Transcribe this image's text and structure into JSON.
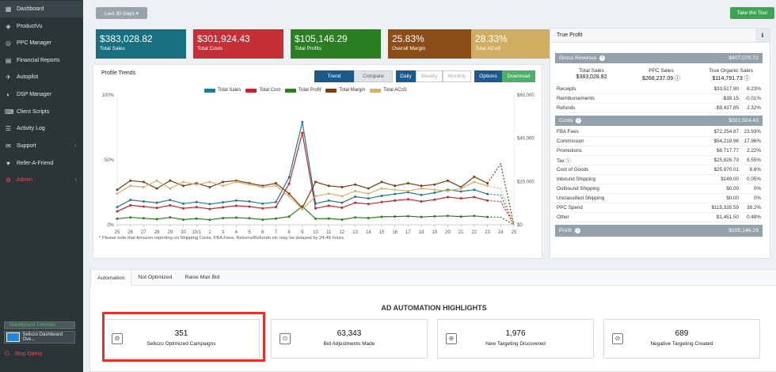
{
  "sidebar": {
    "items": [
      {
        "label": "Dashboard",
        "icon": "dashboard-icon",
        "active": true
      },
      {
        "label": "ProductVu",
        "icon": "product-icon"
      },
      {
        "label": "PPC Manager",
        "icon": "ppc-icon"
      },
      {
        "label": "Financial Reports",
        "icon": "report-icon"
      },
      {
        "label": "Autopilot",
        "icon": "autopilot-icon"
      },
      {
        "label": "DSP Manager",
        "icon": "dsp-icon"
      },
      {
        "label": "Client Scripts",
        "icon": "script-icon"
      },
      {
        "label": "Activity Log",
        "icon": "log-icon"
      },
      {
        "label": "Support",
        "icon": "support-icon",
        "arrow": "‹"
      },
      {
        "label": "Refer-A-Friend",
        "icon": "refer-icon"
      },
      {
        "label": "Admin",
        "icon": "admin-icon",
        "arrow": "‹"
      }
    ],
    "tutorials_label": "Dashboard Tutorials",
    "tutorial_item": "Sellozo Dashboard Ove...",
    "stop_demo": "Stop Demo"
  },
  "toolbar": {
    "date_range": "Last 30 Days ▾",
    "tour": "Take the Tour"
  },
  "kpis": [
    {
      "value": "$383,028.82",
      "label": "Total Sales",
      "color": "#17707f"
    },
    {
      "value": "$301,924.43",
      "label": "Total Costs",
      "color": "#c62f35"
    },
    {
      "value": "$105,146.29",
      "label": "Total Profits",
      "color": "#2a7f20"
    },
    {
      "value": "25.83%",
      "label": "Overall Margin",
      "color": "#8b4c16"
    },
    {
      "value": "28.33%",
      "label": "Total ACoS",
      "color": "#d0ae61"
    }
  ],
  "trend": {
    "title": "Profile Trends",
    "buttons": {
      "trend": "Trend",
      "compare": "Compare",
      "daily": "Daily",
      "weekly": "Weekly",
      "monthly": "Monthly",
      "options": "Options",
      "download": "Download"
    },
    "note": "* Please note that Amazon reporting on Shipping Costs, FBA Fees, Returns/Refunds etc may be delayed by 24-48 hours."
  },
  "chart_data": {
    "type": "line",
    "categories": [
      "25",
      "26",
      "27",
      "28",
      "29",
      "30",
      "10/1",
      "2",
      "3",
      "4",
      "5",
      "6",
      "7",
      "8",
      "9",
      "10",
      "11",
      "12",
      "13",
      "14",
      "15",
      "16",
      "17",
      "18",
      "19",
      "20",
      "21",
      "22",
      "23",
      "24",
      "25"
    ],
    "yleft_ticks": [
      "100%",
      "50%",
      "0%"
    ],
    "yright_ticks": [
      "$60,000",
      "$40,000",
      "$20,000",
      "$0"
    ],
    "ylim_left": [
      0,
      100
    ],
    "ylim_right": [
      0,
      60000
    ],
    "series": [
      {
        "name": "Total Sales",
        "color": "#1f7d8c",
        "axis": "right",
        "values": [
          8200,
          11500,
          10800,
          10200,
          11500,
          9800,
          10500,
          9600,
          10400,
          11200,
          10800,
          9800,
          10500,
          22000,
          47500,
          9800,
          11200,
          10200,
          13000,
          12200,
          13400,
          14200,
          15000,
          13800,
          14800,
          16200,
          15400,
          16200,
          14200,
          13800,
          0
        ]
      },
      {
        "name": "Total Cost",
        "color": "#c9252c",
        "axis": "right",
        "values": [
          6200,
          9000,
          8400,
          7800,
          9000,
          7600,
          8200,
          7300,
          8100,
          8800,
          8400,
          7600,
          8200,
          19000,
          42500,
          7600,
          8800,
          7900,
          10200,
          9600,
          10500,
          11200,
          11800,
          10800,
          11600,
          12800,
          12200,
          12800,
          11200,
          10800,
          0
        ]
      },
      {
        "name": "Total Profit",
        "color": "#2d7d22",
        "axis": "right",
        "values": [
          2800,
          3400,
          3000,
          2600,
          3400,
          2400,
          2900,
          2300,
          3100,
          3300,
          3000,
          2400,
          2900,
          3800,
          8500,
          2800,
          2900,
          2400,
          3400,
          3100,
          3700,
          3800,
          4000,
          3600,
          3900,
          4100,
          3800,
          4100,
          3600,
          3500,
          0
        ]
      },
      {
        "name": "Total Margin",
        "color": "#7a3e10",
        "axis": "left",
        "values": [
          27,
          34,
          33,
          28,
          34,
          30,
          32,
          29,
          33,
          34,
          32,
          30,
          32,
          24,
          13,
          33,
          30,
          29,
          31,
          28,
          33,
          30,
          32,
          30,
          31,
          34,
          29,
          37,
          32,
          47,
          0
        ]
      },
      {
        "name": "Total ACoS",
        "color": "#d4b16e",
        "axis": "left",
        "values": [
          24,
          30,
          29,
          34,
          28,
          33,
          31,
          33,
          30,
          33,
          31,
          29,
          30,
          22,
          12,
          22,
          24,
          22,
          26,
          24,
          28,
          27,
          26,
          28,
          27,
          26,
          28,
          33,
          30,
          28,
          0
        ]
      }
    ]
  },
  "profit": {
    "title": "True Profit",
    "gross_label": "Gross Revenue",
    "gross_value": "$407,070.72",
    "summary": [
      {
        "h": "Total Sales",
        "v": "$383,028.82"
      },
      {
        "h": "PPC Sales",
        "v": "$268,237.09"
      },
      {
        "h": "True Organic Sales",
        "v": "$114,791.73"
      }
    ],
    "rev_rows": [
      {
        "l": "Receipts",
        "a": "$33,517.90",
        "p": "8.23%"
      },
      {
        "l": "Reimbursements",
        "a": "-$38.15",
        "p": "-0.01%"
      },
      {
        "l": "Refunds",
        "a": "-$9,437.85",
        "p": "2.32%"
      }
    ],
    "costs_label": "Costs",
    "costs_value": "$301,924.43",
    "cost_rows": [
      {
        "l": "FBA Fees",
        "a": "$72,254.87",
        "p": "23.93%"
      },
      {
        "l": "Commission",
        "a": "$54,218.96",
        "p": "17.96%"
      },
      {
        "l": "Promotions",
        "a": "$6,717.77",
        "p": "2.22%"
      },
      {
        "l": "Tax",
        "a": "$25,826.73",
        "p": "8.55%"
      },
      {
        "l": "Cost of Goods",
        "a": "$25,970.01",
        "p": "8.6%"
      },
      {
        "l": "Inbound Shipping",
        "a": "$149.00",
        "p": "0.05%"
      },
      {
        "l": "Outbound Shipping",
        "a": "$0.00",
        "p": "0%"
      },
      {
        "l": "Unclassified Shipping",
        "a": "$0.00",
        "p": "0%"
      },
      {
        "l": "PPC Spend",
        "a": "$115,335.59",
        "p": "38.2%"
      },
      {
        "l": "Other",
        "a": "$1,451.50",
        "p": "0.48%"
      }
    ],
    "profit_label": "Profit",
    "profit_value": "$105,146.29"
  },
  "automation": {
    "tabs": [
      "Automation",
      "Not Optimized",
      "Raise Max Bid"
    ],
    "heading": "AD AUTOMATION HIGHLIGHTS",
    "cards": [
      {
        "value": "351",
        "label": "Sellozo Optimized Campaigns",
        "icon": "campaign-icon"
      },
      {
        "value": "63,343",
        "label": "Bid Adjustments Made",
        "icon": "bid-icon"
      },
      {
        "value": "1,976",
        "label": "New Targeting Discovered",
        "icon": "targeting-icon"
      },
      {
        "value": "689",
        "label": "Negative Targeting Created",
        "icon": "negative-icon"
      }
    ]
  }
}
